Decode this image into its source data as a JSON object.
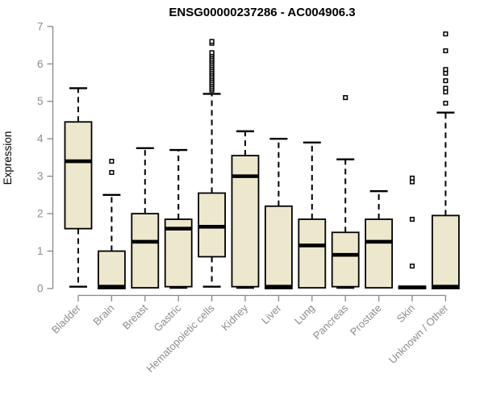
{
  "chart_data": {
    "type": "boxplot",
    "title": "ENSG00000237286 - AC004906.3",
    "ylabel": "Expression",
    "xlabel": "",
    "ylim": [
      0,
      7
    ],
    "yticks": [
      0,
      1,
      2,
      3,
      4,
      5,
      6,
      7
    ],
    "grid": false,
    "legend_position": "none",
    "categories": [
      "Bladder",
      "Brain",
      "Breast",
      "Gastric",
      "Hematopoietic cells",
      "Kidney",
      "Liver",
      "Lung",
      "Pancreas",
      "Prostate",
      "Skin",
      "Unknown / Other"
    ],
    "series": [
      {
        "category": "Bladder",
        "min": 0.05,
        "q1": 1.6,
        "median": 3.4,
        "q3": 4.45,
        "max": 5.35,
        "outliers": []
      },
      {
        "category": "Brain",
        "min": 0,
        "q1": 0,
        "median": 0.05,
        "q3": 1.0,
        "max": 2.5,
        "outliers": [
          3.1,
          3.4
        ]
      },
      {
        "category": "Breast",
        "min": 0,
        "q1": 0.02,
        "median": 1.25,
        "q3": 2.0,
        "max": 3.75,
        "outliers": []
      },
      {
        "category": "Gastric",
        "min": 0.02,
        "q1": 0.05,
        "median": 1.6,
        "q3": 1.85,
        "max": 3.7,
        "outliers": []
      },
      {
        "category": "Hematopoietic cells",
        "min": 0.05,
        "q1": 0.85,
        "median": 1.65,
        "q3": 2.55,
        "max": 5.2,
        "outliers": [
          5.3,
          5.35,
          5.4,
          5.45,
          5.5,
          5.55,
          5.6,
          5.65,
          5.7,
          5.75,
          5.8,
          5.85,
          5.9,
          5.95,
          6.0,
          6.05,
          6.1,
          6.15,
          6.2,
          6.25,
          6.3,
          6.55,
          6.6
        ]
      },
      {
        "category": "Kidney",
        "min": 0.02,
        "q1": 0.05,
        "median": 3.0,
        "q3": 3.55,
        "max": 4.2,
        "outliers": []
      },
      {
        "category": "Liver",
        "min": 0,
        "q1": 0,
        "median": 0.05,
        "q3": 2.2,
        "max": 4.0,
        "outliers": []
      },
      {
        "category": "Lung",
        "min": 0,
        "q1": 0.02,
        "median": 1.15,
        "q3": 1.85,
        "max": 3.9,
        "outliers": []
      },
      {
        "category": "Pancreas",
        "min": 0.02,
        "q1": 0.05,
        "median": 0.9,
        "q3": 1.5,
        "max": 3.45,
        "outliers": [
          5.1
        ]
      },
      {
        "category": "Prostate",
        "min": 0,
        "q1": 0.02,
        "median": 1.25,
        "q3": 1.85,
        "max": 2.6,
        "outliers": []
      },
      {
        "category": "Skin",
        "min": 0,
        "q1": 0,
        "median": 0.03,
        "q3": 0.06,
        "max": 0.06,
        "outliers": [
          0.6,
          1.85,
          2.85,
          2.95
        ]
      },
      {
        "category": "Unknown / Other",
        "min": 0,
        "q1": 0,
        "median": 0.05,
        "q3": 1.95,
        "max": 4.7,
        "outliers": [
          4.95,
          5.25,
          5.35,
          5.55,
          5.75,
          5.85,
          6.35,
          6.8
        ]
      }
    ],
    "style": {
      "box_fill": "#EDE8CD",
      "box_border": "#000000",
      "median_color": "#000000",
      "whisker_color": "#000000",
      "outlier_color": "#000000",
      "axis_color": "#888888",
      "tick_label_color": "#8C8C8C",
      "title_color": "#000000",
      "background": "#FFFFFF"
    }
  }
}
